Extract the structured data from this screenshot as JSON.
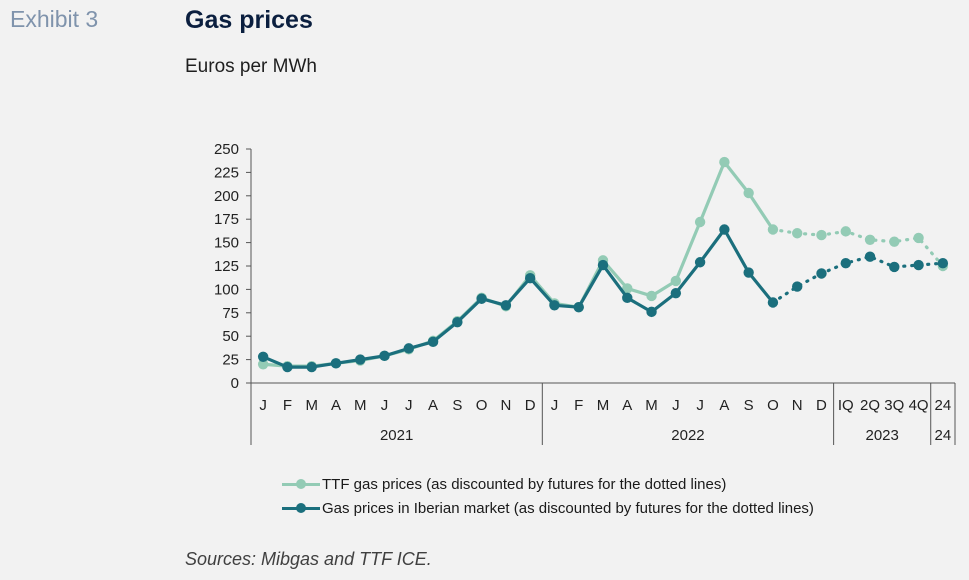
{
  "header": {
    "exhibit": "Exhibit 3",
    "title": "Gas prices",
    "subtitle": "Euros per MWh"
  },
  "source": "Sources: Mibgas and TTF ICE.",
  "colors": {
    "ttf": "#93cbb5",
    "iberian": "#1b6f7d",
    "axis": "#555555"
  },
  "legend": {
    "ttf": "TTF gas prices (as discounted by futures for the dotted lines)",
    "iberian": "Gas prices in Iberian market (as discounted by futures for the dotted lines)"
  },
  "chart_data": {
    "type": "line",
    "categories": [
      "J",
      "F",
      "M",
      "A",
      "M",
      "J",
      "J",
      "A",
      "S",
      "O",
      "N",
      "D",
      "J",
      "F",
      "M",
      "A",
      "M",
      "J",
      "J",
      "A",
      "S",
      "O",
      "N",
      "D",
      "IQ",
      "2Q",
      "3Q",
      "4Q",
      "24"
    ],
    "groups": [
      {
        "label": "2021",
        "start": 0,
        "end": 11
      },
      {
        "label": "2022",
        "start": 12,
        "end": 23
      },
      {
        "label": "2023",
        "start": 24,
        "end": 27
      },
      {
        "label": "24",
        "start": 28,
        "end": 28
      }
    ],
    "ylim": [
      0,
      250
    ],
    "yticks": [
      0,
      25,
      50,
      75,
      100,
      125,
      150,
      175,
      200,
      225,
      250
    ],
    "solid_until_index": 21,
    "series": [
      {
        "name": "TTF gas prices (as discounted by futures for the dotted lines)",
        "key": "ttf",
        "values": [
          20,
          18,
          18,
          21,
          24,
          29,
          36,
          45,
          66,
          91,
          82,
          115,
          85,
          81,
          131,
          101,
          93,
          109,
          172,
          236,
          203,
          164,
          160,
          158,
          162,
          153,
          151,
          155,
          125
        ]
      },
      {
        "name": "Gas prices in Iberian market (as discounted by futures for the dotted lines)",
        "key": "iberian",
        "values": [
          28,
          17,
          17,
          21,
          25,
          29,
          37,
          44,
          65,
          90,
          83,
          112,
          83,
          81,
          126,
          91,
          76,
          96,
          129,
          164,
          118,
          86,
          103,
          117,
          128,
          135,
          124,
          126,
          128
        ]
      }
    ]
  }
}
